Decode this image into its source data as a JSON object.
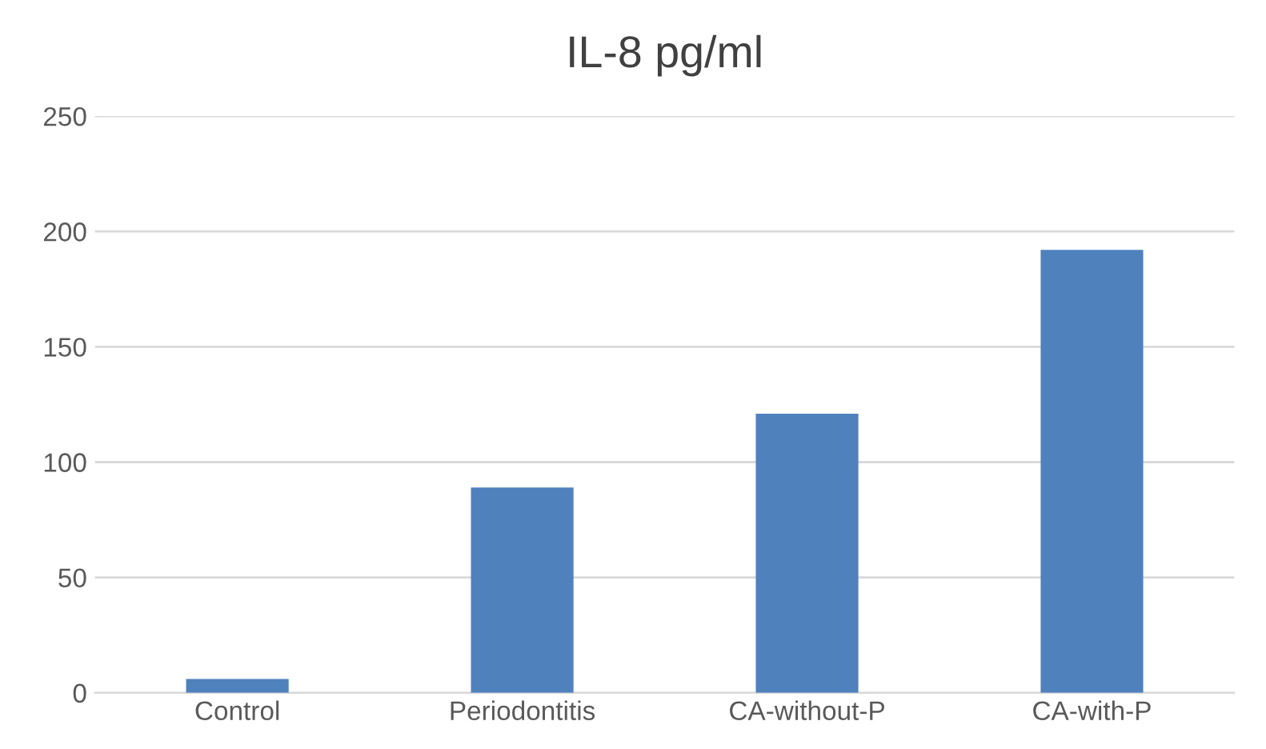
{
  "chart_data": {
    "type": "bar",
    "title": "IL-8 pg/ml",
    "categories": [
      "Control",
      "Periodontitis",
      "CA-without-P",
      "CA-with-P"
    ],
    "values": [
      6,
      89,
      121,
      192
    ],
    "color": "#4f81bd",
    "ylim": [
      0,
      250
    ],
    "yticks": [
      0,
      50,
      100,
      150,
      200,
      250
    ],
    "grid": "y",
    "legend": false
  }
}
